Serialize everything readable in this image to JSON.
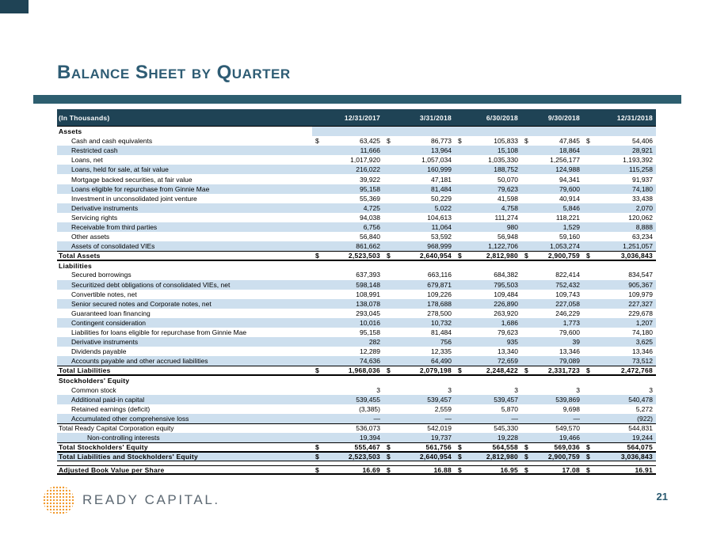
{
  "title": "Balance Sheet by Quarter",
  "page_number": "21",
  "logo": {
    "text": "READY CAPITAL.",
    "icon": "dotted-globe-icon"
  },
  "colors": {
    "header_bar": "#1f4355",
    "divider_bar": "#2d5e6f",
    "row_stripe": "#cddfee",
    "title_text": "#2e5c74",
    "logo_orange": "#f29a2e",
    "logo_gray": "#5c6872"
  },
  "table": {
    "unit_label": "(In Thousands)",
    "columns": [
      "12/31/2017",
      "3/31/2018",
      "6/30/2018",
      "9/30/2018",
      "12/31/2018"
    ],
    "rows": [
      {
        "style": "section",
        "label": "Assets",
        "valueStripe": true
      },
      {
        "style": "item",
        "label": "Cash and cash equivalents",
        "dollar": true,
        "values": [
          "63,425",
          "86,773",
          "105,833",
          "47,845",
          "54,406"
        ]
      },
      {
        "style": "item",
        "stripe": true,
        "label": "Restricted cash",
        "values": [
          "11,666",
          "13,964",
          "15,108",
          "18,864",
          "28,921"
        ]
      },
      {
        "style": "item",
        "label": "Loans, net",
        "values": [
          "1,017,920",
          "1,057,034",
          "1,035,330",
          "1,256,177",
          "1,193,392"
        ]
      },
      {
        "style": "item",
        "stripe": true,
        "label": "Loans, held for sale, at fair value",
        "values": [
          "216,022",
          "160,999",
          "188,752",
          "124,988",
          "115,258"
        ]
      },
      {
        "style": "item",
        "label": "Mortgage backed securities, at fair value",
        "values": [
          "39,922",
          "47,181",
          "50,070",
          "94,341",
          "91,937"
        ]
      },
      {
        "style": "item",
        "stripe": true,
        "label": "Loans eligible for repurchase from Ginnie Mae",
        "values": [
          "95,158",
          "81,484",
          "79,623",
          "79,600",
          "74,180"
        ]
      },
      {
        "style": "item",
        "label": "Investment in unconsolidated joint venture",
        "values": [
          "55,369",
          "50,229",
          "41,598",
          "40,914",
          "33,438"
        ]
      },
      {
        "style": "item",
        "stripe": true,
        "label": "Derivative instruments",
        "values": [
          "4,725",
          "5,022",
          "4,758",
          "5,846",
          "2,070"
        ]
      },
      {
        "style": "item",
        "label": "Servicing rights",
        "values": [
          "94,038",
          "104,613",
          "111,274",
          "118,221",
          "120,062"
        ]
      },
      {
        "style": "item",
        "stripe": true,
        "label": "Receivable from third parties",
        "values": [
          "6,756",
          "11,064",
          "980",
          "1,529",
          "8,888"
        ]
      },
      {
        "style": "item",
        "label": "Other assets",
        "values": [
          "56,840",
          "53,592",
          "56,948",
          "59,160",
          "63,234"
        ]
      },
      {
        "style": "item",
        "stripe": true,
        "label": "Assets of consolidated VIEs",
        "values": [
          "861,662",
          "968,999",
          "1,122,706",
          "1,053,274",
          "1,251,057"
        ]
      },
      {
        "style": "total",
        "label": "Total Assets",
        "dollar": true,
        "values": [
          "2,523,503",
          "2,640,954",
          "2,812,980",
          "2,900,759",
          "3,036,843"
        ]
      },
      {
        "style": "section",
        "label": "Liabilities"
      },
      {
        "style": "item",
        "label": "Secured borrowings",
        "values": [
          "637,393",
          "663,116",
          "684,382",
          "822,414",
          "834,547"
        ]
      },
      {
        "style": "item",
        "stripe": true,
        "label": "Securitized debt obligations of consolidated VIEs, net",
        "values": [
          "598,148",
          "679,871",
          "795,503",
          "752,432",
          "905,367"
        ]
      },
      {
        "style": "item",
        "label": "Convertible notes, net",
        "values": [
          "108,991",
          "109,226",
          "109,484",
          "109,743",
          "109,979"
        ]
      },
      {
        "style": "item",
        "stripe": true,
        "label": "Senior secured notes and Corporate notes, net",
        "values": [
          "138,078",
          "178,688",
          "226,890",
          "227,058",
          "227,327"
        ]
      },
      {
        "style": "item",
        "label": "Guaranteed loan financing",
        "values": [
          "293,045",
          "278,500",
          "263,920",
          "246,229",
          "229,678"
        ]
      },
      {
        "style": "item",
        "stripe": true,
        "label": "Contingent consideration",
        "values": [
          "10,016",
          "10,732",
          "1,686",
          "1,773",
          "1,207"
        ]
      },
      {
        "style": "item",
        "label": "Liabilities for loans eligible for repurchase from  Ginnie Mae",
        "values": [
          "95,158",
          "81,484",
          "79,623",
          "79,600",
          "74,180"
        ]
      },
      {
        "style": "item",
        "stripe": true,
        "label": "Derivative instruments",
        "values": [
          "282",
          "756",
          "935",
          "39",
          "3,625"
        ]
      },
      {
        "style": "item",
        "label": "Dividends payable",
        "values": [
          "12,289",
          "12,335",
          "13,340",
          "13,346",
          "13,346"
        ]
      },
      {
        "style": "item",
        "stripe": true,
        "label": "Accounts payable and other accrued liabilities",
        "values": [
          "74,636",
          "64,490",
          "72,659",
          "79,089",
          "73,512"
        ]
      },
      {
        "style": "total",
        "label": "Total Liabilities",
        "dollar": true,
        "values": [
          "1,968,036",
          "2,079,198",
          "2,248,422",
          "2,331,723",
          "2,472,768"
        ]
      },
      {
        "style": "section",
        "label": "Stockholders' Equity"
      },
      {
        "style": "item",
        "label": "Common stock",
        "values": [
          "3",
          "3",
          "3",
          "3",
          "3"
        ]
      },
      {
        "style": "item",
        "stripe": true,
        "label": "Additional paid-in capital",
        "values": [
          "539,455",
          "539,457",
          "539,457",
          "539,869",
          "540,478"
        ]
      },
      {
        "style": "item",
        "label": "Retained earnings (deficit)",
        "values": [
          "(3,385)",
          "2,559",
          "5,870",
          "9,698",
          "5,272"
        ]
      },
      {
        "style": "item",
        "stripe": true,
        "label": "Accumulated other comprehensive loss",
        "values": [
          "—",
          "—",
          "—",
          "—",
          "(922)"
        ]
      },
      {
        "style": "plain",
        "label": "Total Ready Capital Corporation equity",
        "values": [
          "536,073",
          "542,019",
          "545,330",
          "549,570",
          "544,831"
        ]
      },
      {
        "style": "item2",
        "stripe": true,
        "label": "Non-controlling interests",
        "values": [
          "19,394",
          "19,737",
          "19,228",
          "19,466",
          "19,244"
        ]
      },
      {
        "style": "total",
        "label": "Total Stockholders' Equity",
        "dollar": true,
        "values": [
          "555,467",
          "561,756",
          "564,558",
          "569,036",
          "564,075"
        ]
      },
      {
        "style": "grand",
        "stripe": true,
        "label": "Total Liabilities and Stockholders' Equity",
        "dollar": true,
        "values": [
          "2,523,503",
          "2,640,954",
          "2,812,980",
          "2,900,759",
          "3,036,843"
        ]
      },
      {
        "style": "spacer"
      },
      {
        "style": "abv",
        "label": "Adjusted Book Value per Share",
        "dollar": true,
        "values": [
          "16.69",
          "16.88",
          "16.95",
          "17.08",
          "16.91"
        ]
      }
    ]
  }
}
